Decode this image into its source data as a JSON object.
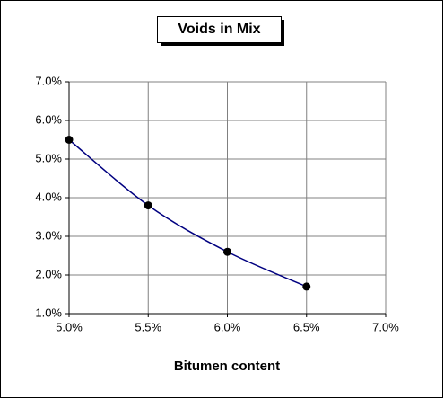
{
  "chart_data": {
    "type": "scatter",
    "title": "Voids in Mix",
    "x_label": "Bitumen content",
    "series": [
      {
        "x": [
          5.0,
          5.5,
          6.0,
          6.5
        ],
        "values": [
          5.5,
          3.8,
          2.6,
          1.7
        ],
        "color": "#000080",
        "marker_color": "#000000"
      }
    ],
    "xlim": [
      5.0,
      7.0
    ],
    "xticks": [
      {
        "value": 5.0,
        "label": "5.0%"
      },
      {
        "value": 5.5,
        "label": "5.5%"
      },
      {
        "value": 6.0,
        "label": "6.0%"
      },
      {
        "value": 6.5,
        "label": "6.5%"
      },
      {
        "value": 7.0,
        "label": "7.0%"
      }
    ],
    "ylim": [
      1.0,
      7.0
    ],
    "yticks": [
      {
        "value": 1.0,
        "label": "1.0%"
      },
      {
        "value": 2.0,
        "label": "2.0%"
      },
      {
        "value": 3.0,
        "label": "3.0%"
      },
      {
        "value": 4.0,
        "label": "4.0%"
      },
      {
        "value": 5.0,
        "label": "5.0%"
      },
      {
        "value": 6.0,
        "label": "6.0%"
      },
      {
        "value": 7.0,
        "label": "7.0%"
      }
    ],
    "grid": true
  }
}
